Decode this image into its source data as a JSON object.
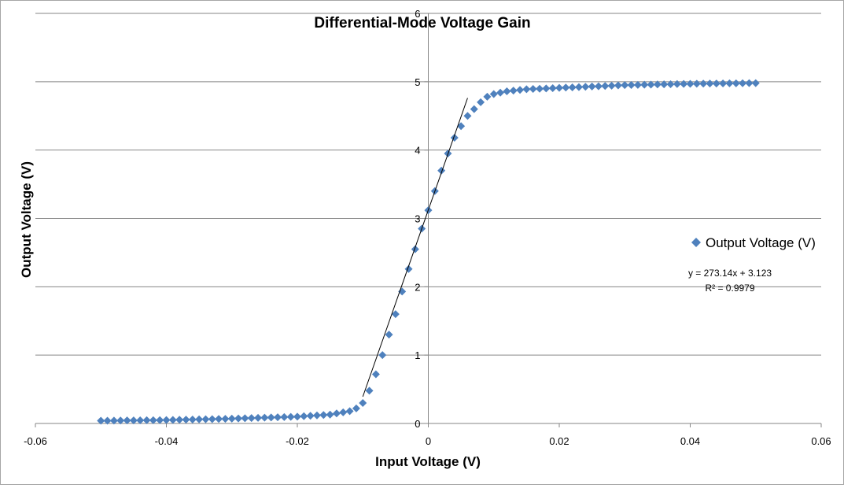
{
  "chart_data": {
    "type": "scatter",
    "title": "Differential-Mode Voltage Gain",
    "xlabel": "Input Voltage  (V)",
    "ylabel": "Output  Voltage  (V)",
    "xlim": [
      -0.06,
      0.06
    ],
    "ylim": [
      0,
      6
    ],
    "x_ticks": [
      "-0.06",
      "-0.04",
      "-0.02",
      "0",
      "0.02",
      "0.04",
      "0.06"
    ],
    "y_ticks": [
      "0",
      "1",
      "2",
      "3",
      "4",
      "5",
      "6"
    ],
    "grid": "horizontal",
    "legend_position": "right",
    "series": [
      {
        "name": "Output Voltage (V)",
        "marker": "diamond",
        "color": "#4f81bd",
        "x_start": -0.05,
        "x_end": 0.05,
        "x_step": 0.001,
        "points": [
          [
            -0.05,
            0.04
          ],
          [
            -0.04,
            0.05
          ],
          [
            -0.03,
            0.07
          ],
          [
            -0.02,
            0.1
          ],
          [
            -0.015,
            0.13
          ],
          [
            -0.012,
            0.18
          ],
          [
            -0.011,
            0.22
          ],
          [
            -0.01,
            0.3
          ],
          [
            -0.009,
            0.48
          ],
          [
            -0.008,
            0.72
          ],
          [
            -0.007,
            1.0
          ],
          [
            -0.006,
            1.3
          ],
          [
            -0.005,
            1.6
          ],
          [
            -0.004,
            1.93
          ],
          [
            -0.003,
            2.26
          ],
          [
            -0.002,
            2.55
          ],
          [
            -0.001,
            2.85
          ],
          [
            0.0,
            3.12
          ],
          [
            0.001,
            3.4
          ],
          [
            0.002,
            3.7
          ],
          [
            0.003,
            3.95
          ],
          [
            0.004,
            4.18
          ],
          [
            0.005,
            4.35
          ],
          [
            0.006,
            4.5
          ],
          [
            0.007,
            4.6
          ],
          [
            0.008,
            4.7
          ],
          [
            0.009,
            4.78
          ],
          [
            0.01,
            4.82
          ],
          [
            0.012,
            4.86
          ],
          [
            0.015,
            4.89
          ],
          [
            0.02,
            4.91
          ],
          [
            0.03,
            4.95
          ],
          [
            0.04,
            4.97
          ],
          [
            0.05,
            4.98
          ]
        ]
      }
    ],
    "trendline": {
      "type": "linear",
      "slope": 273.14,
      "intercept": 3.123,
      "x_range": [
        -0.01,
        0.006
      ],
      "color": "#000000",
      "equation_text": "y = 273.14x + 3.123",
      "r2_text": "R² = 0.9979"
    }
  }
}
